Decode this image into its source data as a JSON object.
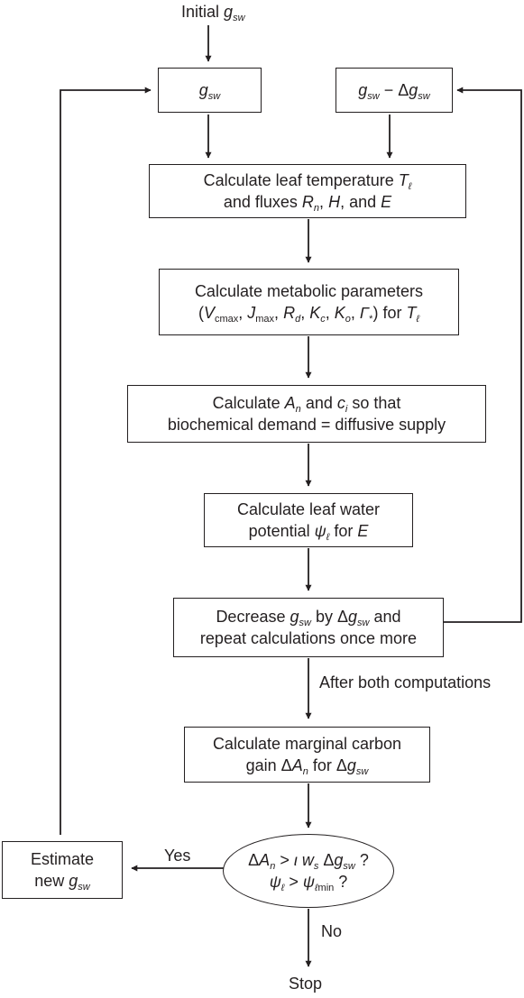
{
  "labels": {
    "initial": "Initial",
    "after_both": "After both computations",
    "yes": "Yes",
    "no": "No",
    "stop": "Stop"
  },
  "boxes": {
    "leaf_temp": {
      "line1": "Calculate leaf temperature",
      "line2a": "and fluxes",
      "line2b": "and"
    },
    "metabolic": {
      "line1": "Calculate metabolic parameters",
      "line2_for": "for"
    },
    "an_ci": {
      "line1a": "Calculate",
      "line1b": "and",
      "line1c": "so that",
      "line2": "biochemical demand = diffusive supply"
    },
    "water_potential": {
      "line1": "Calculate leaf water",
      "line2a": "potential",
      "line2b": "for"
    },
    "decrease": {
      "line1a": "Decrease",
      "line1b": "by",
      "line1c": "and",
      "line2": "repeat calculations once more"
    },
    "marginal": {
      "line1": "Calculate marginal carbon",
      "line2a": "gain",
      "line2b": "for"
    },
    "estimate": {
      "line1": "Estimate",
      "line2": "new"
    }
  },
  "colors": {
    "stroke": "#231f20",
    "background": "#ffffff"
  }
}
